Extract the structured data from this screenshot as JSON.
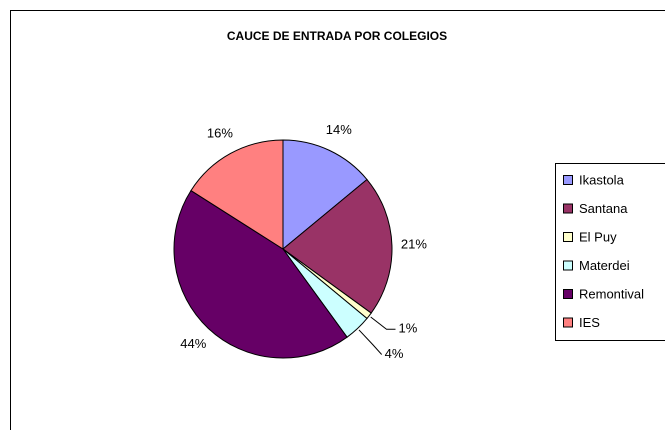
{
  "chart_data": {
    "type": "pie",
    "title": "CAUCE DE ENTRADA POR COLEGIOS",
    "categories": [
      "Ikastola",
      "Santana",
      "El Puy",
      "Materdei",
      "Remontival",
      "IES"
    ],
    "values": [
      14,
      21,
      1,
      4,
      44,
      16
    ],
    "value_labels": [
      "14%",
      "21%",
      "1%",
      "4%",
      "44%",
      "16%"
    ],
    "colors": [
      "#9999ff",
      "#993366",
      "#ffffcc",
      "#ccffff",
      "#660066",
      "#ff8080"
    ],
    "legend": "right"
  }
}
